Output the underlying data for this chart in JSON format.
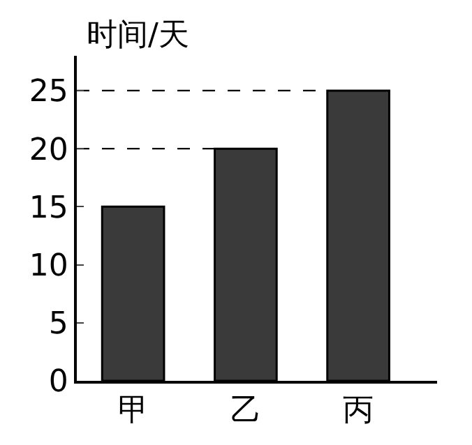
{
  "chart_data": {
    "type": "bar",
    "ylabel": "时间/天",
    "categories": [
      "甲",
      "乙",
      "丙"
    ],
    "values": [
      15,
      20,
      25
    ],
    "color": "#3a3a3a",
    "ylim": [
      0,
      28
    ],
    "yticks": [
      0,
      5,
      10,
      15,
      20,
      25
    ],
    "grid": false,
    "legend": false,
    "ref_lines": [
      {
        "axis": "y",
        "value": 20,
        "line_style": "dashed",
        "color": "#000000"
      },
      {
        "axis": "y",
        "value": 25,
        "line_style": "dashed",
        "color": "#000000"
      }
    ]
  }
}
